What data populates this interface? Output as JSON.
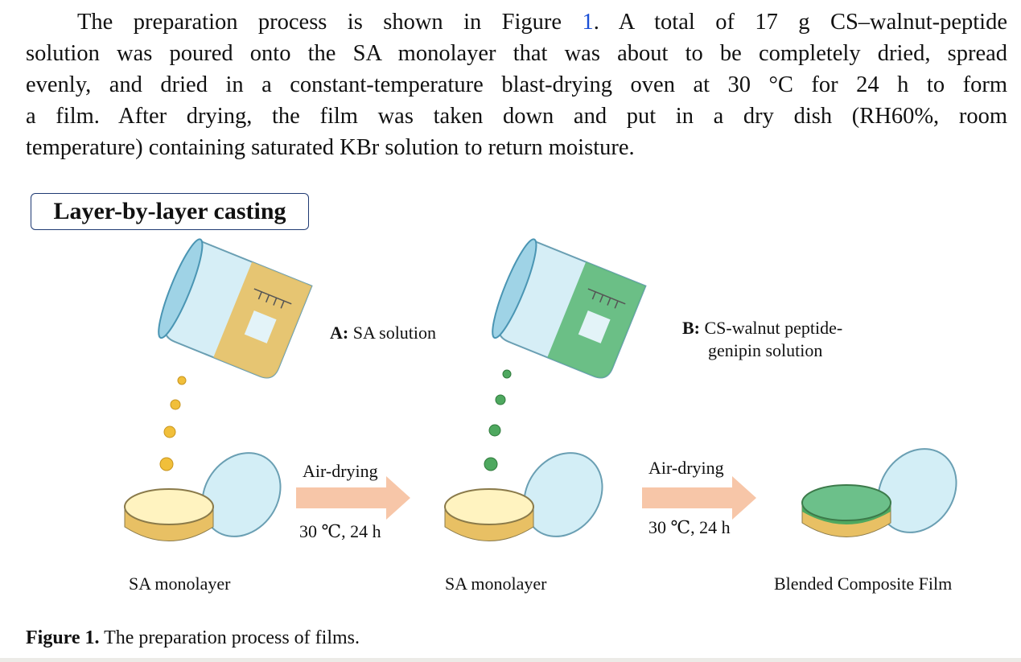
{
  "paragraph": {
    "lines": [
      {
        "before": "The preparation process is shown in Figure ",
        "link": "1",
        "after": ".  A total of 17 g CS–walnut-peptide"
      },
      {
        "text": "solution was poured onto the SA monolayer that was about to be completely dried, spread"
      },
      {
        "text": "evenly, and dried in a constant-temperature blast-drying oven at 30 °C for 24 h to form"
      },
      {
        "text": "a film.  After drying, the film was taken down and put in a dry dish (RH60%, room"
      },
      {
        "text": "temperature) containing saturated KBr solution to return moisture."
      }
    ]
  },
  "figure": {
    "box_title": "Layer-by-layer casting",
    "label_a_prefix": "A:",
    "label_a_text": " SA solution",
    "label_b_prefix": "B:",
    "label_b_line1": " CS-walnut peptide-",
    "label_b_line2": "genipin  solution",
    "step1_top": "Air-drying",
    "step1_bottom": "30 ℃, 24 h",
    "step2_top": "Air-drying",
    "step2_bottom": "30 ℃, 24 h",
    "dish1_label": "SA monolayer",
    "dish2_label": "SA monolayer",
    "dish3_label": "Blended Composite Film",
    "colors": {
      "sa": "#e8c064",
      "cs": "#5fb97a",
      "glass": "#bfe3ef",
      "arrow": "#f7c6a8",
      "box_border": "#1f3a73"
    }
  },
  "caption": {
    "label": "Figure 1.",
    "text": " The preparation process of films."
  }
}
